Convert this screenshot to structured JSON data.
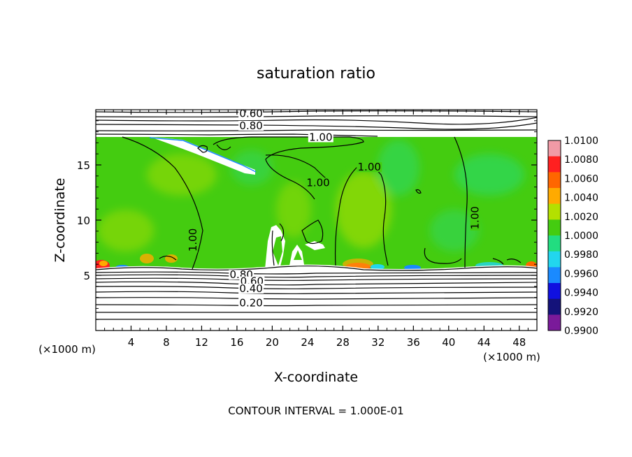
{
  "chart_data": {
    "type": "heatmap",
    "title": "saturation ratio",
    "xlabel": "X-coordinate",
    "ylabel": "Z-coordinate",
    "x_unit_left": "(×1000 m)",
    "x_unit_right": "(×1000 m)",
    "xlim": [
      0,
      50
    ],
    "ylim": [
      0,
      20
    ],
    "x_ticks": [
      4,
      8,
      12,
      16,
      20,
      24,
      28,
      32,
      36,
      40,
      44,
      48
    ],
    "y_ticks": [
      5,
      10,
      15
    ],
    "footer": "CONTOUR INTERVAL = 1.000E-01",
    "colorbar": {
      "labels": [
        "1.0100",
        "1.0080",
        "1.0060",
        "1.0040",
        "1.0020",
        "1.0000",
        "0.9980",
        "0.9960",
        "0.9940",
        "0.9920",
        "0.9900"
      ],
      "colors": [
        "#f19aa6",
        "#ff2020",
        "#ff6600",
        "#ffaa00",
        "#b4e000",
        "#44cc10",
        "#22dd80",
        "#22d6ee",
        "#1a8aff",
        "#1010e0",
        "#14127a",
        "#7a1a9a"
      ]
    },
    "contour_labels": [
      {
        "text": "0.60",
        "x": 17.6,
        "z": 19.65
      },
      {
        "text": "0.80",
        "x": 17.6,
        "z": 18.55
      },
      {
        "text": "1.00",
        "x": 25.5,
        "z": 17.5
      },
      {
        "text": "1.00",
        "x": 31.0,
        "z": 14.8
      },
      {
        "text": "1.00",
        "x": 25.2,
        "z": 13.4
      },
      {
        "text": "1.00",
        "x": 43.0,
        "z": 10.2
      },
      {
        "text": "1.00",
        "x": 11.0,
        "z": 8.2
      },
      {
        "text": "0.80",
        "x": 16.5,
        "z": 5.05
      },
      {
        "text": "0.60",
        "x": 17.7,
        "z": 4.45
      },
      {
        "text": "0.40",
        "x": 17.6,
        "z": 3.8
      },
      {
        "text": "0.20",
        "x": 17.6,
        "z": 2.5
      }
    ]
  }
}
